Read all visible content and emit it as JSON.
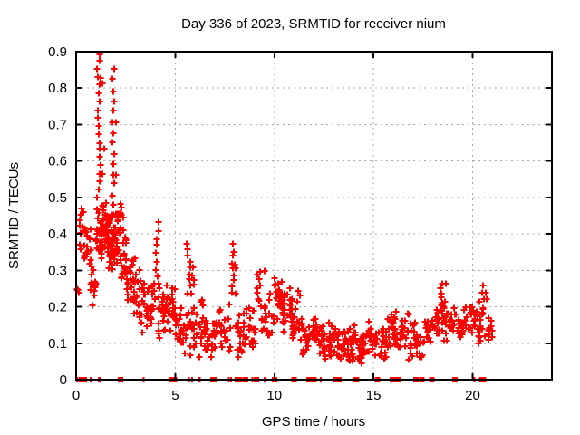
{
  "title": "Day 336 of 2023, SRMTID for receiver nium",
  "chart_data": {
    "type": "scatter",
    "title": "Day 336 of 2023, SRMTID for receiver nium",
    "xlabel": "GPS time / hours",
    "ylabel": "SRMTID / TECUs",
    "xlim": [
      0,
      24
    ],
    "ylim": [
      0,
      0.9
    ],
    "grid": true,
    "legend": "none",
    "marker": "+",
    "series_name": "SRMTID",
    "series_color": "#ff0000",
    "x_ticks": {
      "values": [
        0,
        5,
        10,
        15,
        20
      ],
      "labels": [
        "0",
        "5",
        "10",
        "15",
        "20"
      ]
    },
    "y_ticks": {
      "values": [
        0,
        0.1,
        0.2,
        0.3,
        0.4,
        0.5,
        0.6,
        0.7,
        0.8,
        0.9
      ],
      "labels": [
        "0",
        "0.1",
        "0.2",
        "0.3",
        "0.4",
        "0.5",
        "0.6",
        "0.7",
        "0.8",
        "0.9"
      ]
    },
    "clusters_format": "[t_start_hours, t_end_hours, srmtid_min, srmtid_max, point_count, is_vertical_column]",
    "clusters": [
      [
        0.02,
        0.15,
        0.23,
        0.27,
        4,
        0
      ],
      [
        0.15,
        0.45,
        0.29,
        0.49,
        16,
        0
      ],
      [
        0.45,
        0.75,
        0.3,
        0.45,
        14,
        0
      ],
      [
        0.72,
        1.0,
        0.2,
        0.34,
        16,
        0
      ],
      [
        1.0,
        1.3,
        0.31,
        0.5,
        24,
        0
      ],
      [
        1.05,
        1.22,
        0.5,
        0.895,
        19,
        1
      ],
      [
        1.3,
        1.62,
        0.31,
        0.52,
        30,
        0
      ],
      [
        1.62,
        1.85,
        0.29,
        0.47,
        24,
        0
      ],
      [
        1.82,
        1.98,
        0.45,
        0.85,
        15,
        1
      ],
      [
        1.85,
        2.22,
        0.29,
        0.48,
        26,
        0
      ],
      [
        2.2,
        2.4,
        0.4,
        0.5,
        8,
        0
      ],
      [
        2.22,
        2.55,
        0.26,
        0.42,
        22,
        0
      ],
      [
        2.55,
        2.9,
        0.18,
        0.36,
        20,
        0
      ],
      [
        2.9,
        3.2,
        0.15,
        0.4,
        18,
        0
      ],
      [
        3.2,
        3.6,
        0.12,
        0.3,
        18,
        0
      ],
      [
        3.6,
        4.0,
        0.13,
        0.28,
        20,
        0
      ],
      [
        4.02,
        4.18,
        0.28,
        0.43,
        8,
        1
      ],
      [
        4.0,
        4.5,
        0.1,
        0.27,
        22,
        0
      ],
      [
        4.5,
        5.0,
        0.12,
        0.27,
        26,
        0
      ],
      [
        5.0,
        5.45,
        0.08,
        0.2,
        18,
        0
      ],
      [
        5.55,
        5.8,
        0.24,
        0.375,
        9,
        1
      ],
      [
        5.4,
        6.0,
        0.06,
        0.22,
        22,
        0
      ],
      [
        6.0,
        6.6,
        0.05,
        0.25,
        26,
        0
      ],
      [
        6.6,
        7.2,
        0.05,
        0.18,
        24,
        0
      ],
      [
        7.2,
        7.8,
        0.06,
        0.22,
        22,
        0
      ],
      [
        7.82,
        7.98,
        0.24,
        0.37,
        9,
        1
      ],
      [
        8.0,
        8.6,
        0.05,
        0.2,
        24,
        0
      ],
      [
        8.6,
        9.1,
        0.06,
        0.22,
        20,
        0
      ],
      [
        9.1,
        9.35,
        0.2,
        0.3,
        9,
        1
      ],
      [
        9.35,
        10.0,
        0.1,
        0.25,
        20,
        0
      ],
      [
        10.0,
        10.45,
        0.15,
        0.3,
        26,
        0
      ],
      [
        10.45,
        10.9,
        0.12,
        0.28,
        22,
        0
      ],
      [
        10.9,
        11.3,
        0.07,
        0.25,
        20,
        0
      ],
      [
        11.3,
        11.75,
        0.05,
        0.18,
        18,
        0
      ],
      [
        11.75,
        12.2,
        0.07,
        0.21,
        20,
        0
      ],
      [
        12.2,
        12.7,
        0.04,
        0.16,
        20,
        0
      ],
      [
        12.7,
        13.2,
        0.04,
        0.17,
        22,
        0
      ],
      [
        13.2,
        13.7,
        0.03,
        0.14,
        22,
        0
      ],
      [
        13.7,
        14.2,
        0.04,
        0.17,
        24,
        0
      ],
      [
        14.2,
        14.7,
        0.04,
        0.15,
        24,
        0
      ],
      [
        14.7,
        15.2,
        0.04,
        0.17,
        22,
        0
      ],
      [
        15.2,
        15.7,
        0.05,
        0.16,
        20,
        0
      ],
      [
        15.7,
        16.2,
        0.06,
        0.2,
        22,
        0
      ],
      [
        16.2,
        16.7,
        0.07,
        0.19,
        18,
        0
      ],
      [
        16.7,
        17.15,
        0.05,
        0.2,
        20,
        0
      ],
      [
        17.15,
        17.6,
        0.05,
        0.15,
        16,
        0
      ],
      [
        17.6,
        18.2,
        0.09,
        0.2,
        20,
        0
      ],
      [
        18.3,
        18.55,
        0.18,
        0.26,
        8,
        1
      ],
      [
        18.2,
        18.9,
        0.1,
        0.22,
        22,
        0
      ],
      [
        18.9,
        19.5,
        0.1,
        0.2,
        20,
        0
      ],
      [
        19.5,
        20.1,
        0.11,
        0.22,
        20,
        0
      ],
      [
        20.1,
        20.6,
        0.08,
        0.24,
        20,
        0
      ],
      [
        20.45,
        20.6,
        0.18,
        0.26,
        5,
        1
      ],
      [
        20.6,
        21.1,
        0.08,
        0.18,
        12,
        0
      ]
    ],
    "zero_value_squares_t": [
      0.25,
      0.35,
      2.25,
      4.85,
      4.95,
      6.9,
      7.0,
      8.25,
      8.55,
      9.1,
      10.0,
      11.0,
      11.8,
      12.0,
      13.1,
      13.2,
      14.15,
      15.2,
      15.95,
      16.15,
      17.15,
      17.45,
      17.95,
      19.1,
      20.45,
      20.55
    ],
    "zero_value_ticks_t": [
      0.05,
      0.5,
      0.73,
      0.78,
      1.15,
      1.22,
      2.18,
      3.4,
      5.7,
      5.85,
      6.2,
      6.25,
      7.7,
      7.82,
      8.05,
      8.1,
      8.9,
      9.5,
      10.9,
      11.65,
      12.35,
      13.35,
      14.0,
      14.05,
      16.35,
      20.1
    ]
  },
  "style": {
    "background": "#ffffff",
    "point_color": "#ff0000",
    "axis_color": "#000000",
    "grid_color": "#a8a8a8",
    "text_color": "#000000"
  }
}
